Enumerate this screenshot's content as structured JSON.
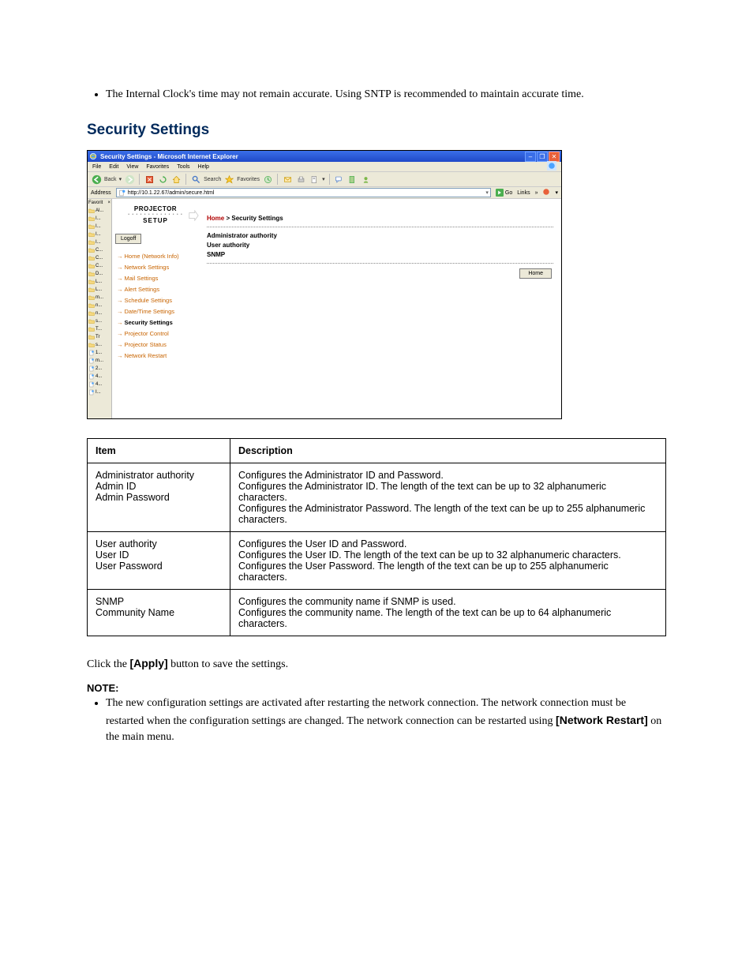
{
  "intro_bullet": "The Internal Clock's time may not remain accurate. Using SNTP is recommended to maintain accurate time.",
  "section_heading": "Security Settings",
  "ie": {
    "title": "Security Settings - Microsoft Internet Explorer",
    "menus": [
      "File",
      "Edit",
      "View",
      "Favorites",
      "Tools",
      "Help"
    ],
    "toolbar": {
      "back": "Back",
      "search": "Search",
      "favorites": "Favorites"
    },
    "address_label": "Address",
    "url": "http://10.1.22.67/admin/secure.html",
    "go": "Go",
    "links": "Links",
    "fav_header": "Favorit",
    "fav_items": [
      "Al...",
      "I...",
      "I...",
      "I...",
      "I...",
      "C...",
      "C...",
      "C...",
      "D...",
      "L...",
      "L...",
      "m...",
      "n...",
      "n...",
      "s...",
      "T...",
      "Tr",
      "s...",
      "1...",
      "m...",
      "2...",
      "4...",
      "4...",
      "I..."
    ]
  },
  "proj": {
    "logo": {
      "line1": "PROJECTOR",
      "line3": "SETUP"
    },
    "logoff": "Logoff",
    "nav": [
      {
        "label": "Home (Network Info)",
        "active": false
      },
      {
        "label": "Network Settings",
        "active": false
      },
      {
        "label": "Mail Settings",
        "active": false
      },
      {
        "label": "Alert Settings",
        "active": false
      },
      {
        "label": "Schedule Settings",
        "active": false
      },
      {
        "label": "Date/Time Settings",
        "active": false
      },
      {
        "label": "Security Settings",
        "active": true
      },
      {
        "label": "Projector Control",
        "active": false
      },
      {
        "label": "Projector Status",
        "active": false
      },
      {
        "label": "Network Restart",
        "active": false
      }
    ],
    "bc_home": "Home",
    "bc_sep": " > ",
    "bc_page": "Security Settings",
    "options": [
      "Administrator authority",
      "User authority",
      "SNMP"
    ],
    "home_btn": "Home"
  },
  "table": {
    "headers": [
      "Item",
      "Description"
    ],
    "rows": [
      {
        "item": "Administrator authority\nAdmin ID\nAdmin Password",
        "desc": "Configures the Administrator ID and Password.\nConfigures the Administrator ID. The length of the text can be up to 32 alphanumeric characters.\nConfigures the Administrator Password. The length of the text can be up to 255 alphanumeric characters."
      },
      {
        "item": "User authority\nUser ID\nUser Password",
        "desc": "Configures the User ID and Password.\nConfigures the User ID. The length of the text can be up to 32 alphanumeric characters.\nConfigures the User Password. The length of the text can be up to 255 alphanumeric characters."
      },
      {
        "item": "SNMP\nCommunity Name",
        "desc": "Configures the community name if SNMP is used.\nConfigures the community name. The length of the text can be up to 64 alphanumeric characters."
      }
    ]
  },
  "after": {
    "click_pre": "Click the ",
    "apply": "[Apply]",
    "click_post": " button to save the settings.",
    "note_label": "NOTE:",
    "note_pre": "The new configuration settings are activated after restarting the network connection. The network connection must be restarted when the configuration settings are changed. The network connection can be restarted using ",
    "nr": "[Network Restart]",
    "note_post": " on the main menu."
  },
  "colors": {
    "accent": "#002a5c",
    "nav": "#c86400",
    "home": "#b00000"
  }
}
